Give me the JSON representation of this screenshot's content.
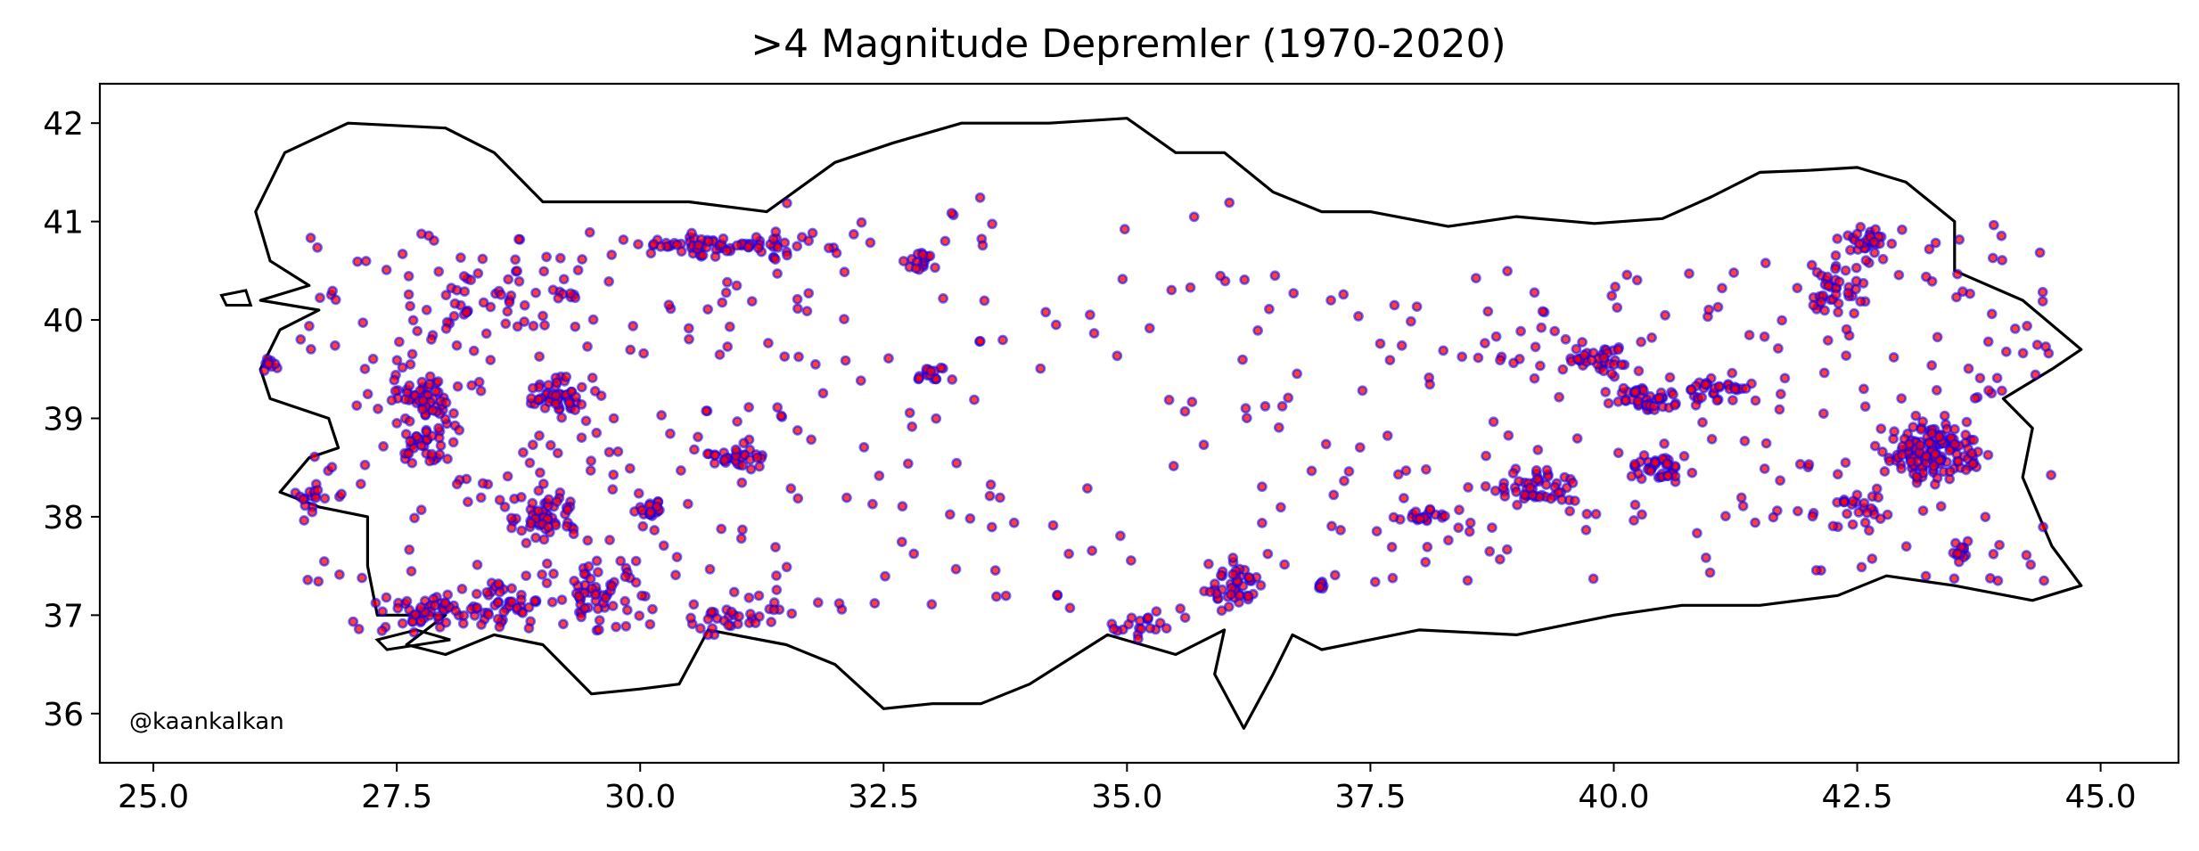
{
  "chart_data": {
    "type": "scatter",
    "title": ">4 Magnitude Depremler (1970-2020)",
    "xlabel": "",
    "ylabel": "",
    "xlim": [
      24.45,
      45.8
    ],
    "ylim": [
      35.5,
      42.4
    ],
    "xticks": [
      25.0,
      27.5,
      30.0,
      32.5,
      35.0,
      37.5,
      40.0,
      42.5,
      45.0
    ],
    "xtick_labels": [
      "25.0",
      "27.5",
      "30.0",
      "32.5",
      "35.0",
      "37.5",
      "40.0",
      "42.5",
      "45.0"
    ],
    "yticks": [
      36,
      37,
      38,
      39,
      40,
      41,
      42
    ],
    "ytick_labels": [
      "36",
      "37",
      "38",
      "39",
      "40",
      "41",
      "42"
    ],
    "grid": false,
    "annotation": "@kaankalkan",
    "marker_face_color": "#ff0000",
    "marker_edge_color": "#0000ff",
    "outline_color": "#000000",
    "outline": [
      [
        26.1,
        40.2
      ],
      [
        26.6,
        40.35
      ],
      [
        26.2,
        40.6
      ],
      [
        26.05,
        41.1
      ],
      [
        26.35,
        41.7
      ],
      [
        27.0,
        42.0
      ],
      [
        28.0,
        41.95
      ],
      [
        28.5,
        41.7
      ],
      [
        29.0,
        41.2
      ],
      [
        29.5,
        41.2
      ],
      [
        30.5,
        41.2
      ],
      [
        31.3,
        41.1
      ],
      [
        32.0,
        41.6
      ],
      [
        32.6,
        41.8
      ],
      [
        33.3,
        42.0
      ],
      [
        34.2,
        42.0
      ],
      [
        35.0,
        42.05
      ],
      [
        35.5,
        41.7
      ],
      [
        36.0,
        41.7
      ],
      [
        36.5,
        41.3
      ],
      [
        37.0,
        41.1
      ],
      [
        37.5,
        41.1
      ],
      [
        38.3,
        40.95
      ],
      [
        39.0,
        41.05
      ],
      [
        39.8,
        40.98
      ],
      [
        40.5,
        41.03
      ],
      [
        41.0,
        41.25
      ],
      [
        41.5,
        41.5
      ],
      [
        42.0,
        41.52
      ],
      [
        42.5,
        41.55
      ],
      [
        43.0,
        41.4
      ],
      [
        43.5,
        41.0
      ],
      [
        43.5,
        40.5
      ],
      [
        44.2,
        40.2
      ],
      [
        44.8,
        39.7
      ],
      [
        44.5,
        39.5
      ],
      [
        44.0,
        39.2
      ],
      [
        44.3,
        38.9
      ],
      [
        44.2,
        38.4
      ],
      [
        44.5,
        37.7
      ],
      [
        44.8,
        37.3
      ],
      [
        44.3,
        37.15
      ],
      [
        43.5,
        37.3
      ],
      [
        42.8,
        37.4
      ],
      [
        42.3,
        37.2
      ],
      [
        41.5,
        37.1
      ],
      [
        40.7,
        37.1
      ],
      [
        40.0,
        37.0
      ],
      [
        39.0,
        36.8
      ],
      [
        38.0,
        36.85
      ],
      [
        37.0,
        36.65
      ],
      [
        36.7,
        36.8
      ],
      [
        36.5,
        36.4
      ],
      [
        36.2,
        35.85
      ],
      [
        35.9,
        36.4
      ],
      [
        36.0,
        36.85
      ],
      [
        35.5,
        36.6
      ],
      [
        34.8,
        36.8
      ],
      [
        34.0,
        36.3
      ],
      [
        33.5,
        36.1
      ],
      [
        33.0,
        36.1
      ],
      [
        32.5,
        36.05
      ],
      [
        32.0,
        36.5
      ],
      [
        31.5,
        36.7
      ],
      [
        30.7,
        36.85
      ],
      [
        30.4,
        36.3
      ],
      [
        30.0,
        36.25
      ],
      [
        29.5,
        36.2
      ],
      [
        29.0,
        36.7
      ],
      [
        28.5,
        36.8
      ],
      [
        28.0,
        36.6
      ],
      [
        27.6,
        36.7
      ],
      [
        28.0,
        37.0
      ],
      [
        27.3,
        37.0
      ],
      [
        27.2,
        37.5
      ],
      [
        27.2,
        38.0
      ],
      [
        26.7,
        38.1
      ],
      [
        26.3,
        38.25
      ],
      [
        26.6,
        38.6
      ],
      [
        26.9,
        38.7
      ],
      [
        26.8,
        39.0
      ],
      [
        26.2,
        39.2
      ],
      [
        26.1,
        39.5
      ],
      [
        26.3,
        39.9
      ],
      [
        26.7,
        40.1
      ],
      [
        26.1,
        40.2
      ]
    ],
    "islands": [
      [
        [
          25.7,
          40.25
        ],
        [
          25.95,
          40.3
        ],
        [
          26.0,
          40.15
        ],
        [
          25.75,
          40.15
        ],
        [
          25.7,
          40.25
        ]
      ],
      [
        [
          27.3,
          36.75
        ],
        [
          27.7,
          36.85
        ],
        [
          28.05,
          36.75
        ],
        [
          27.4,
          36.65
        ],
        [
          27.3,
          36.75
        ]
      ]
    ],
    "clusters": [
      {
        "cx": 43.3,
        "cy": 38.65,
        "rx": 0.5,
        "ry": 0.3,
        "n": 140
      },
      {
        "cx": 27.8,
        "cy": 39.2,
        "rx": 0.3,
        "ry": 0.3,
        "n": 60
      },
      {
        "cx": 27.8,
        "cy": 38.75,
        "rx": 0.25,
        "ry": 0.2,
        "n": 35
      },
      {
        "cx": 29.2,
        "cy": 39.2,
        "rx": 0.3,
        "ry": 0.2,
        "n": 50
      },
      {
        "cx": 29.0,
        "cy": 38.0,
        "rx": 0.4,
        "ry": 0.25,
        "n": 55
      },
      {
        "cx": 29.6,
        "cy": 37.2,
        "rx": 0.4,
        "ry": 0.3,
        "n": 55
      },
      {
        "cx": 30.1,
        "cy": 38.05,
        "rx": 0.15,
        "ry": 0.15,
        "n": 20
      },
      {
        "cx": 27.8,
        "cy": 37.05,
        "rx": 0.45,
        "ry": 0.15,
        "n": 45
      },
      {
        "cx": 28.6,
        "cy": 37.1,
        "rx": 0.45,
        "ry": 0.2,
        "n": 45
      },
      {
        "cx": 26.6,
        "cy": 38.2,
        "rx": 0.15,
        "ry": 0.15,
        "n": 15
      },
      {
        "cx": 26.2,
        "cy": 39.55,
        "rx": 0.1,
        "ry": 0.08,
        "n": 10
      },
      {
        "cx": 30.9,
        "cy": 40.75,
        "rx": 0.8,
        "ry": 0.1,
        "n": 70
      },
      {
        "cx": 32.9,
        "cy": 40.6,
        "rx": 0.15,
        "ry": 0.1,
        "n": 15
      },
      {
        "cx": 33.0,
        "cy": 39.45,
        "rx": 0.15,
        "ry": 0.08,
        "n": 15
      },
      {
        "cx": 31.0,
        "cy": 38.6,
        "rx": 0.4,
        "ry": 0.12,
        "n": 30
      },
      {
        "cx": 31.0,
        "cy": 37.0,
        "rx": 0.6,
        "ry": 0.2,
        "n": 30
      },
      {
        "cx": 36.1,
        "cy": 37.3,
        "rx": 0.35,
        "ry": 0.25,
        "n": 45
      },
      {
        "cx": 35.2,
        "cy": 36.9,
        "rx": 0.35,
        "ry": 0.15,
        "n": 20
      },
      {
        "cx": 39.2,
        "cy": 38.3,
        "rx": 0.4,
        "ry": 0.15,
        "n": 45
      },
      {
        "cx": 40.5,
        "cy": 38.5,
        "rx": 0.35,
        "ry": 0.15,
        "n": 40
      },
      {
        "cx": 40.3,
        "cy": 39.2,
        "rx": 0.35,
        "ry": 0.15,
        "n": 40
      },
      {
        "cx": 39.8,
        "cy": 39.6,
        "rx": 0.4,
        "ry": 0.15,
        "n": 40
      },
      {
        "cx": 41.0,
        "cy": 39.3,
        "rx": 0.45,
        "ry": 0.15,
        "n": 40
      },
      {
        "cx": 42.3,
        "cy": 40.35,
        "rx": 0.35,
        "ry": 0.25,
        "n": 40
      },
      {
        "cx": 42.6,
        "cy": 40.8,
        "rx": 0.3,
        "ry": 0.12,
        "n": 25
      },
      {
        "cx": 43.6,
        "cy": 37.65,
        "rx": 0.15,
        "ry": 0.1,
        "n": 12
      },
      {
        "cx": 42.5,
        "cy": 38.1,
        "rx": 0.3,
        "ry": 0.15,
        "n": 20
      },
      {
        "cx": 38.0,
        "cy": 38.0,
        "rx": 0.3,
        "ry": 0.1,
        "n": 20
      },
      {
        "cx": 37.0,
        "cy": 37.3,
        "rx": 0.1,
        "ry": 0.05,
        "n": 8
      },
      {
        "cx": 28.5,
        "cy": 40.2,
        "rx": 0.8,
        "ry": 0.35,
        "n": 50
      }
    ],
    "scattered_regions": [
      {
        "x": [
          26.5,
          31.5
        ],
        "y": [
          36.8,
          40.9
        ],
        "n": 200
      },
      {
        "x": [
          31.5,
          36.5
        ],
        "y": [
          37.0,
          41.3
        ],
        "n": 110
      },
      {
        "x": [
          36.5,
          41.5
        ],
        "y": [
          37.3,
          40.5
        ],
        "n": 120
      },
      {
        "x": [
          41.5,
          44.5
        ],
        "y": [
          37.3,
          41.0
        ],
        "n": 110
      }
    ]
  }
}
